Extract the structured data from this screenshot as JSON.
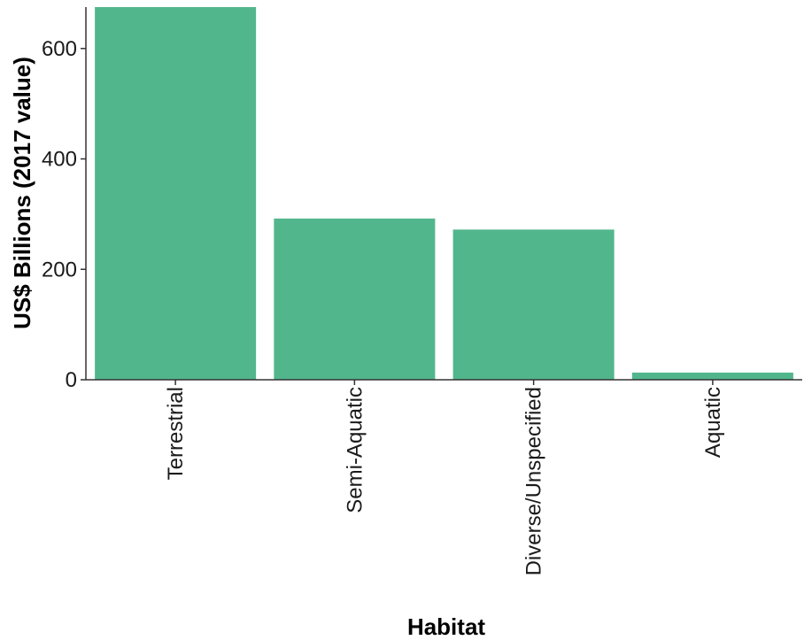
{
  "chart_data": {
    "type": "bar",
    "categories": [
      "Terrestrial",
      "Semi-Aquatic",
      "Diverse/Unspecified",
      "Aquatic"
    ],
    "values": [
      675,
      292,
      272,
      13
    ],
    "xlabel": "Habitat",
    "ylabel": "US$ Billions (2017 value)",
    "ylim": [
      0,
      675
    ],
    "yticks": [
      0,
      200,
      400,
      600
    ],
    "bar_color": "#52b68c",
    "grid": false,
    "legend": "none"
  }
}
